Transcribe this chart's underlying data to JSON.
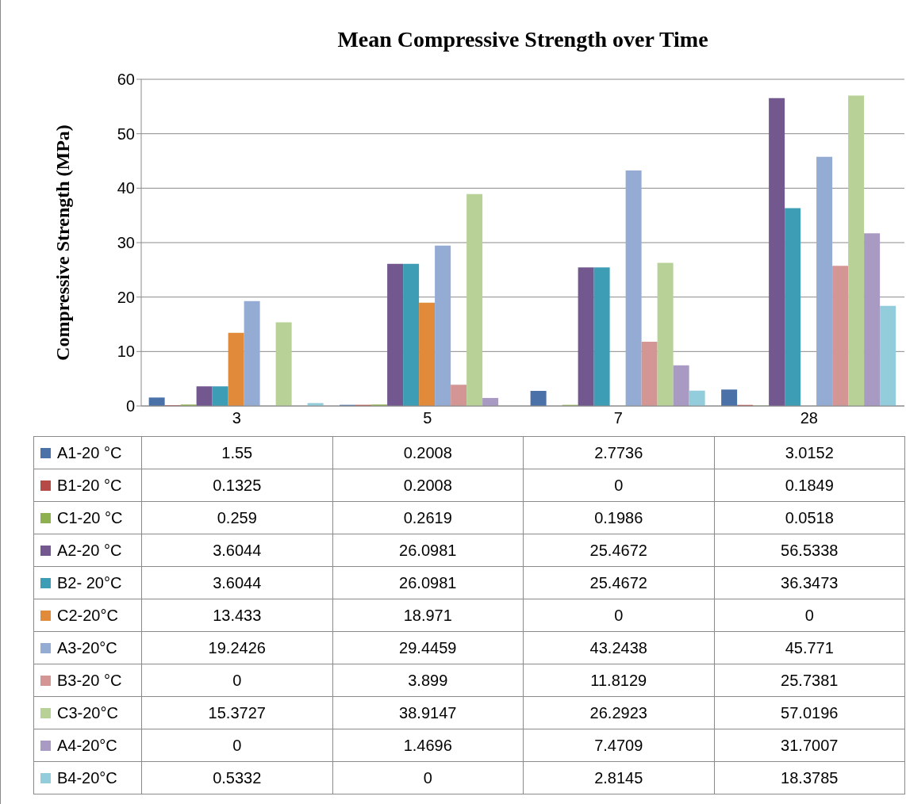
{
  "chart_data": {
    "type": "bar",
    "title": "Mean Compressive Strength over Time",
    "ylabel": "Compressive Strength (MPa)",
    "categories": [
      "3",
      "5",
      "7",
      "28"
    ],
    "ylim": [
      0,
      60
    ],
    "yticks": [
      0,
      10,
      20,
      30,
      40,
      50,
      60
    ],
    "grid": "y",
    "legend": "bottom",
    "data_labels": true,
    "series": [
      {
        "name": "A1-20 °C",
        "color": "#4a72a8",
        "values": [
          1.55,
          0.2008,
          2.7736,
          3.0152
        ]
      },
      {
        "name": "B1-20 °C",
        "color": "#b54a47",
        "values": [
          0.1325,
          0.2008,
          0,
          0.1849
        ]
      },
      {
        "name": "C1-20 °C",
        "color": "#8fb04f",
        "values": [
          0.259,
          0.2619,
          0.1986,
          0.0518
        ]
      },
      {
        "name": "A2-20 °C",
        "color": "#73588f",
        "values": [
          3.6044,
          26.0981,
          25.4672,
          56.5338
        ]
      },
      {
        "name": "B2- 20°C",
        "color": "#3d9db5",
        "values": [
          3.6044,
          26.0981,
          25.4672,
          36.3473
        ]
      },
      {
        "name": "C2-20°C",
        "color": "#e08a3a",
        "values": [
          13.433,
          18.971,
          0,
          0
        ]
      },
      {
        "name": "A3-20°C",
        "color": "#94abd4",
        "values": [
          19.2426,
          29.4459,
          43.2438,
          45.771
        ]
      },
      {
        "name": "B3-20 °C",
        "color": "#d49694",
        "values": [
          0,
          3.899,
          11.8129,
          25.7381
        ]
      },
      {
        "name": "C3-20°C",
        "color": "#b8d196",
        "values": [
          15.3727,
          38.9147,
          26.2923,
          57.0196
        ]
      },
      {
        "name": "A4-20°C",
        "color": "#a89ac2",
        "values": [
          0,
          1.4696,
          7.4709,
          31.7007
        ]
      },
      {
        "name": "B4-20°C",
        "color": "#93ccdb",
        "values": [
          0.5332,
          0,
          2.8145,
          18.3785
        ]
      }
    ]
  }
}
